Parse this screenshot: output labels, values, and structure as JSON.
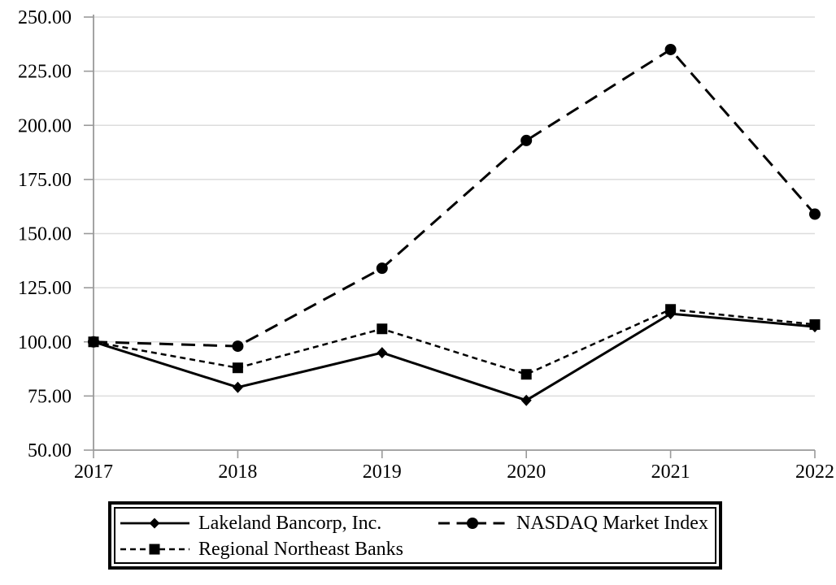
{
  "chart_data": {
    "type": "line",
    "title": "",
    "xlabel": "",
    "ylabel": "",
    "grid": true,
    "legend_position": "bottom",
    "categories": [
      "2017",
      "2018",
      "2019",
      "2020",
      "2021",
      "2022"
    ],
    "y_axis": {
      "min": 50,
      "max": 250,
      "step": 25,
      "ticks": [
        {
          "value": 50,
          "label": "50.00"
        },
        {
          "value": 75,
          "label": "75.00"
        },
        {
          "value": 100,
          "label": "100.00"
        },
        {
          "value": 125,
          "label": "125.00"
        },
        {
          "value": 150,
          "label": "150.00"
        },
        {
          "value": 175,
          "label": "175.00"
        },
        {
          "value": 200,
          "label": "200.00"
        },
        {
          "value": 225,
          "label": "225.00"
        },
        {
          "value": 250,
          "label": "250.00"
        }
      ]
    },
    "series": [
      {
        "name": "Lakeland Bancorp, Inc.",
        "marker": "diamond",
        "line_style": "solid",
        "color": "#000000",
        "values": [
          100,
          79,
          95,
          73,
          113,
          107
        ]
      },
      {
        "name": "NASDAQ Market Index",
        "marker": "circle",
        "line_style": "long-dash",
        "color": "#000000",
        "values": [
          100,
          98,
          134,
          193,
          235,
          159
        ]
      },
      {
        "name": "Regional Northeast Banks",
        "marker": "square",
        "line_style": "short-dash",
        "color": "#000000",
        "values": [
          100,
          88,
          106,
          85,
          115,
          108
        ]
      }
    ]
  },
  "colors": {
    "series": "#000000",
    "gridline": "#dcdcdc",
    "axis": "#9a9a9a",
    "text": "#000000",
    "background": "#ffffff",
    "legend_border": "#000000"
  }
}
